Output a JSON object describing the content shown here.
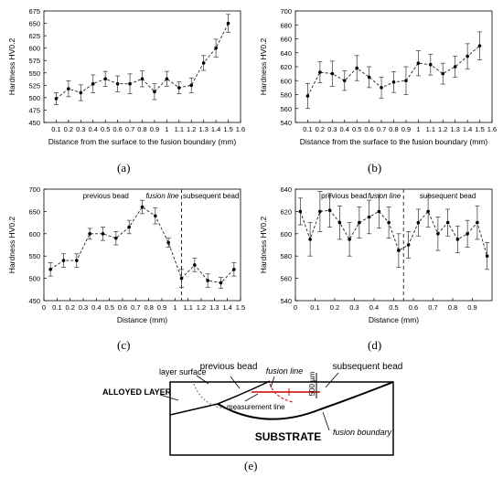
{
  "chart_data": [
    {
      "type": "line",
      "panel": "(a)",
      "xlabel": "Distance from the surface to the fusion boundary (mm)",
      "ylabel": "Hardness HV0.2",
      "xlim": [
        0,
        1.6
      ],
      "ylim": [
        450,
        675
      ],
      "xticks": [
        0.1,
        0.2,
        0.3,
        0.4,
        0.5,
        0.6,
        0.7,
        0.8,
        0.9,
        1,
        1.1,
        1.2,
        1.3,
        1.4,
        1.5,
        1.6
      ],
      "yticks": [
        450,
        475,
        500,
        525,
        550,
        575,
        600,
        625,
        650,
        675
      ],
      "x": [
        0.1,
        0.2,
        0.3,
        0.4,
        0.5,
        0.6,
        0.7,
        0.8,
        0.9,
        1,
        1.1,
        1.2,
        1.3,
        1.4,
        1.5
      ],
      "values": [
        498,
        518,
        510,
        528,
        538,
        528,
        528,
        538,
        512,
        538,
        520,
        525,
        570,
        600,
        650
      ],
      "errors": [
        12,
        16,
        16,
        18,
        15,
        16,
        20,
        16,
        16,
        15,
        12,
        15,
        15,
        18,
        18
      ]
    },
    {
      "type": "line",
      "panel": "(b)",
      "xlabel": "Distance from the surface to the fusion boundary (mm)",
      "ylabel": "Hardness HV0.2",
      "xlim": [
        0,
        1.6
      ],
      "ylim": [
        540,
        700
      ],
      "xticks": [
        0.1,
        0.2,
        0.3,
        0.4,
        0.5,
        0.6,
        0.7,
        0.8,
        0.9,
        1,
        1.1,
        1.2,
        1.3,
        1.4,
        1.5,
        1.6
      ],
      "yticks": [
        540,
        560,
        580,
        600,
        620,
        640,
        660,
        680,
        700
      ],
      "x": [
        0.1,
        0.2,
        0.3,
        0.4,
        0.5,
        0.6,
        0.7,
        0.8,
        0.9,
        1,
        1.1,
        1.2,
        1.3,
        1.4,
        1.5
      ],
      "values": [
        578,
        612,
        610,
        600,
        618,
        605,
        590,
        598,
        600,
        625,
        623,
        610,
        620,
        635,
        650
      ],
      "errors": [
        18,
        15,
        18,
        14,
        18,
        15,
        15,
        15,
        20,
        18,
        15,
        15,
        15,
        18,
        20
      ]
    },
    {
      "type": "line",
      "panel": "(c)",
      "xlabel": "Distance (mm)",
      "ylabel": "Hardness HV0.2",
      "xlim": [
        0,
        1.5
      ],
      "ylim": [
        450,
        700
      ],
      "xticks": [
        0,
        0.1,
        0.2,
        0.3,
        0.4,
        0.5,
        0.6,
        0.7,
        0.8,
        0.9,
        1,
        1.1,
        1.2,
        1.3,
        1.4,
        1.5
      ],
      "yticks": [
        450,
        500,
        550,
        600,
        650,
        700
      ],
      "x": [
        0.05,
        0.15,
        0.25,
        0.35,
        0.45,
        0.55,
        0.65,
        0.75,
        0.85,
        0.95,
        1.05,
        1.15,
        1.25,
        1.35,
        1.45
      ],
      "values": [
        520,
        540,
        540,
        600,
        600,
        590,
        615,
        660,
        640,
        580,
        500,
        530,
        495,
        490,
        520
      ],
      "errors": [
        15,
        15,
        15,
        12,
        15,
        15,
        15,
        15,
        18,
        10,
        20,
        15,
        15,
        12,
        15
      ],
      "divider_x": 1.05,
      "annotations": [
        "previous bead",
        "fusion line",
        "subsequent bead"
      ]
    },
    {
      "type": "line",
      "panel": "(d)",
      "xlabel": "Distance (mm)",
      "ylabel": "Hardness HV0.2",
      "xlim": [
        0,
        1.0
      ],
      "ylim": [
        540,
        640
      ],
      "xticks": [
        0,
        0.1,
        0.2,
        0.3,
        0.4,
        0.5,
        0.6,
        0.7,
        0.8,
        0.9
      ],
      "yticks": [
        540,
        560,
        580,
        600,
        620,
        640
      ],
      "x": [
        0.025,
        0.075,
        0.125,
        0.175,
        0.225,
        0.275,
        0.325,
        0.375,
        0.425,
        0.475,
        0.525,
        0.575,
        0.625,
        0.675,
        0.725,
        0.775,
        0.825,
        0.875,
        0.925,
        0.975
      ],
      "values": [
        620,
        595,
        620,
        621,
        610,
        595,
        610,
        615,
        620,
        610,
        585,
        590,
        610,
        620,
        600,
        610,
        595,
        600,
        610,
        580
      ],
      "errors": [
        12,
        15,
        18,
        15,
        15,
        15,
        14,
        15,
        15,
        14,
        15,
        12,
        12,
        14,
        15,
        12,
        12,
        12,
        15,
        12
      ],
      "divider_x": 0.55,
      "annotations": [
        "previous bead",
        "fusion line",
        "subsequent bead"
      ]
    }
  ],
  "panel_labels": [
    "(a)",
    "(b)",
    "(c)",
    "(d)",
    "(e)"
  ],
  "diagram": {
    "labels": {
      "layer_surface": "layer surface",
      "previous_bead": "previous bead",
      "fusion_line": "fusion line",
      "scale": "500 µm",
      "subsequent_bead": "subsequent bead",
      "alloyed_layer": "ALLOYED LAYER",
      "measurement_line": "measurement line",
      "substrate": "SUBSTRATE",
      "fusion_boundary": "fusion boundary"
    }
  }
}
